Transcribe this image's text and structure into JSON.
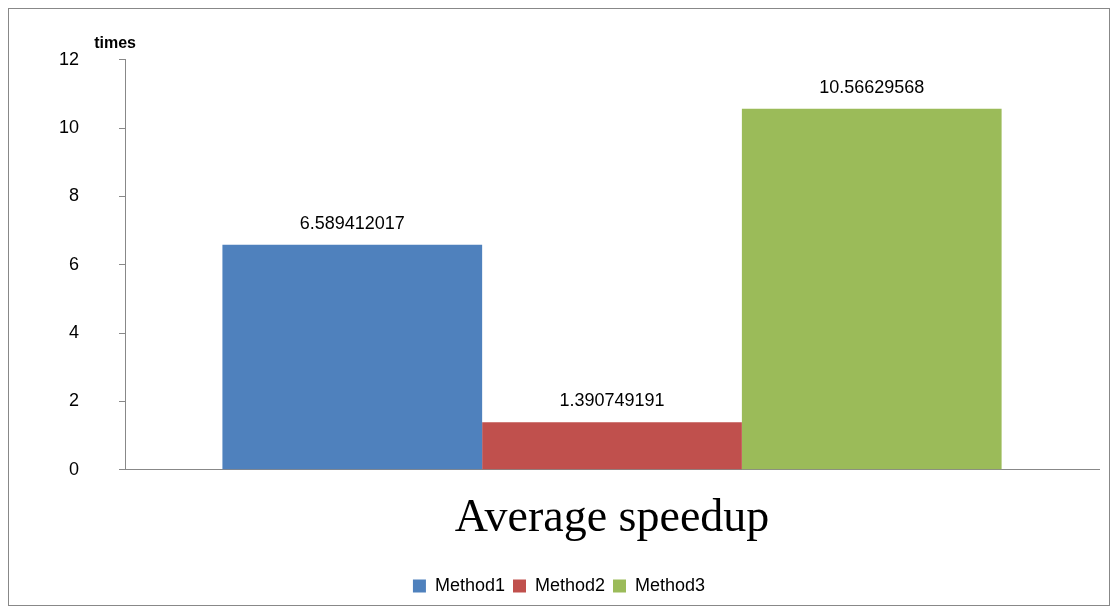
{
  "chart_data": {
    "type": "bar",
    "ylabel": "times",
    "categories": [
      "Average speedup"
    ],
    "series": [
      {
        "name": "Method1",
        "color": "#4f81bd",
        "values": [
          6.589412017
        ]
      },
      {
        "name": "Method2",
        "color": "#c0504d",
        "values": [
          1.390749191
        ]
      },
      {
        "name": "Method3",
        "color": "#9bbb59",
        "values": [
          10.56629568
        ]
      }
    ],
    "ylim": [
      0,
      12
    ],
    "yticks": [
      0,
      2,
      4,
      6,
      8,
      10,
      12
    ],
    "grid": false,
    "legend": "bottom",
    "data_labels": true
  }
}
